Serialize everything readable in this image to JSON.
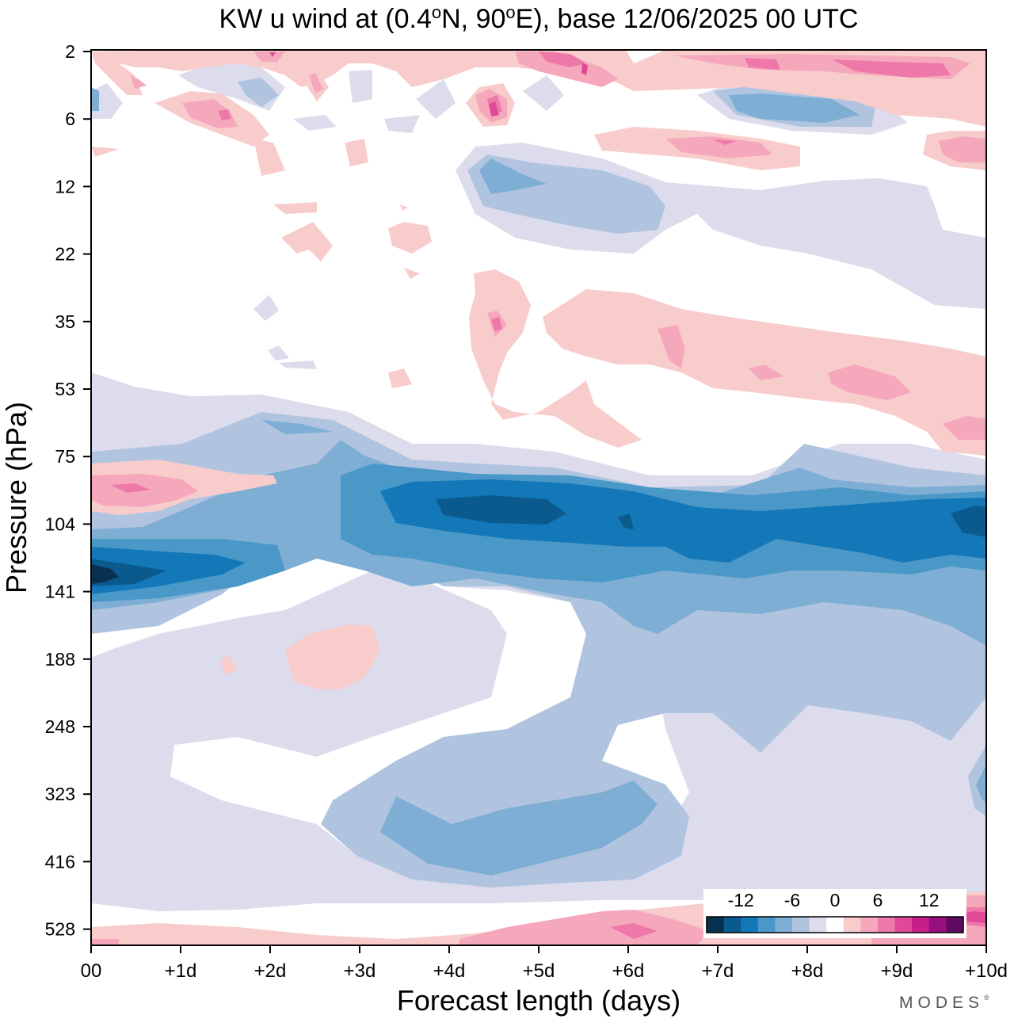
{
  "chart_data": {
    "type": "contour",
    "title": "KW u wind at (0.4°N, 90°E),  base 12/06/2025  00 UTC",
    "title_parts": {
      "pre": "KW u wind at (0.4",
      "deg1": "o",
      "mid": "N, 90",
      "deg2": "o",
      "post": "E),  base 12/06/2025  00 UTC"
    },
    "xlabel": "Forecast length (days)",
    "ylabel": "Pressure (hPa)",
    "x_ticks": [
      "00",
      "+1d",
      "+2d",
      "+3d",
      "+4d",
      "+5d",
      "+6d",
      "+7d",
      "+8d",
      "+9d",
      "+10d"
    ],
    "x_range_days": [
      0,
      10
    ],
    "y_ticks": [
      "2",
      "6",
      "12",
      "22",
      "35",
      "53",
      "75",
      "104",
      "141",
      "188",
      "248",
      "323",
      "416",
      "528"
    ],
    "y_range_hpa": [
      2,
      600
    ],
    "y_scale": "log",
    "colorbar": {
      "labels": [
        "-12",
        "-6",
        "0",
        "6",
        "12"
      ],
      "levels": [
        -16,
        -14,
        -12,
        -10,
        -8,
        -6,
        -4,
        -2,
        2,
        4,
        6,
        8,
        10,
        12,
        14,
        16
      ],
      "colors": [
        "#08304f",
        "#0a5a8e",
        "#1478b8",
        "#4a98c8",
        "#7eaed4",
        "#b0c4e0",
        "#dcdcec",
        "#ffffff",
        "#f9cccc",
        "#f5a8bc",
        "#ee78aa",
        "#e04898",
        "#c81e8a",
        "#981080",
        "#5e0a5e"
      ],
      "placement": "bottom-right inside plot"
    },
    "series": [
      {
        "features": [
          {
            "type": "jet_max",
            "u": -16,
            "days": 0.1,
            "hpa": 130
          },
          {
            "type": "easterly_band",
            "u": -12,
            "days": [
              0,
              2.2
            ],
            "hpa": [
              118,
              150
            ]
          },
          {
            "type": "easterly_band",
            "u": -14,
            "days": [
              3.3,
              10
            ],
            "hpa": [
              88,
              112
            ]
          },
          {
            "type": "jet_max",
            "u": -16,
            "days": 4.2,
            "hpa": 98
          },
          {
            "type": "jet_max",
            "u": -16,
            "days": 9.9,
            "hpa": 100
          },
          {
            "type": "westerly_band",
            "u": 6,
            "days": [
              0,
              1.2
            ],
            "hpa": [
              84,
              98
            ]
          },
          {
            "type": "westerly_band",
            "u": 4,
            "days": [
              5.2,
              10
            ],
            "hpa": [
              33,
              60
            ]
          },
          {
            "type": "easterly_band",
            "u": -8,
            "days": [
              3.5,
              6.3
            ],
            "hpa": [
              320,
              430
            ]
          },
          {
            "type": "westerly_band",
            "u": 8,
            "days": [
              5.0,
              10
            ],
            "hpa": [
              2,
              3.5
            ]
          },
          {
            "type": "westerly_band",
            "u": 6,
            "days": [
              0,
              10
            ],
            "hpa": [
              520,
              600
            ]
          }
        ]
      }
    ]
  },
  "logo_text": "MODES",
  "logo_reg": "®"
}
